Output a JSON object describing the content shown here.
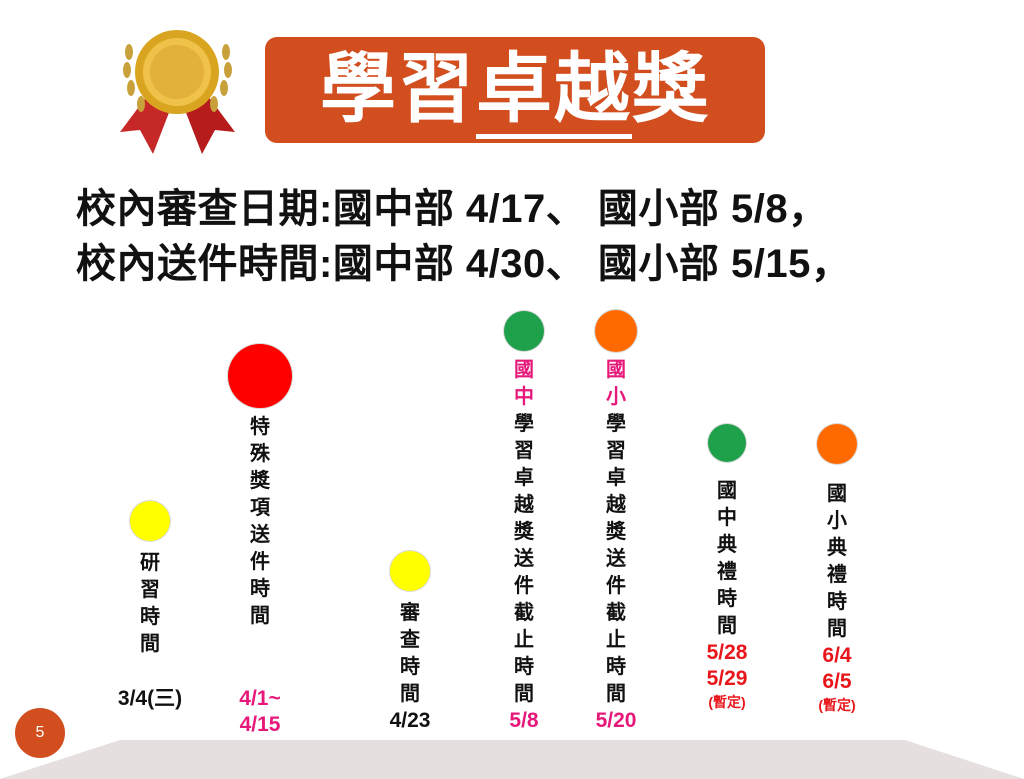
{
  "header": {
    "title_part1": "學習",
    "title_part2": "卓越",
    "title_part3": "獎",
    "title_bg_color": "#d24e1f",
    "medal_icon": "gold-medal-ribbon-icon"
  },
  "info": {
    "line1": "校內審查日期:國中部 4/17、 國小部 5/8，",
    "line2": "校內送件時間:國中部 4/30、 國小部 5/15，"
  },
  "timeline": [
    {
      "highlight": "",
      "label": "研習時間",
      "dates": [
        "3/4(三)"
      ],
      "note": "",
      "dot_color": "#ffff00",
      "date_color": "#111111"
    },
    {
      "highlight": "",
      "label": "特殊獎項送件時間",
      "dates": [
        "4/1~",
        "4/15"
      ],
      "note": "",
      "dot_color": "#ff0000",
      "date_color": "#e6197a"
    },
    {
      "highlight": "",
      "label": "審查時間",
      "dates": [
        "4/23"
      ],
      "note": "",
      "dot_color": "#ffff00",
      "date_color": "#111111"
    },
    {
      "highlight": "國中",
      "label": "學習卓越獎送件截止時間",
      "dates": [
        "5/8"
      ],
      "note": "",
      "dot_color": "#1fa04a",
      "date_color": "#e6197a"
    },
    {
      "highlight": "國小",
      "label": "學習卓越獎送件截止時間",
      "dates": [
        "5/20"
      ],
      "note": "",
      "dot_color": "#ff6a00",
      "date_color": "#e6197a"
    },
    {
      "highlight": "",
      "label": "國中典禮時間",
      "dates": [
        "5/28",
        "5/29"
      ],
      "note": "(暫定)",
      "dot_color": "#1fa04a",
      "date_color": "#e8161b"
    },
    {
      "highlight": "",
      "label": "國小典禮時間",
      "dates": [
        "6/4",
        "6/5"
      ],
      "note": "(暫定)",
      "dot_color": "#ff6a00",
      "date_color": "#e8161b"
    }
  ],
  "footer": {
    "page_number": "5"
  }
}
